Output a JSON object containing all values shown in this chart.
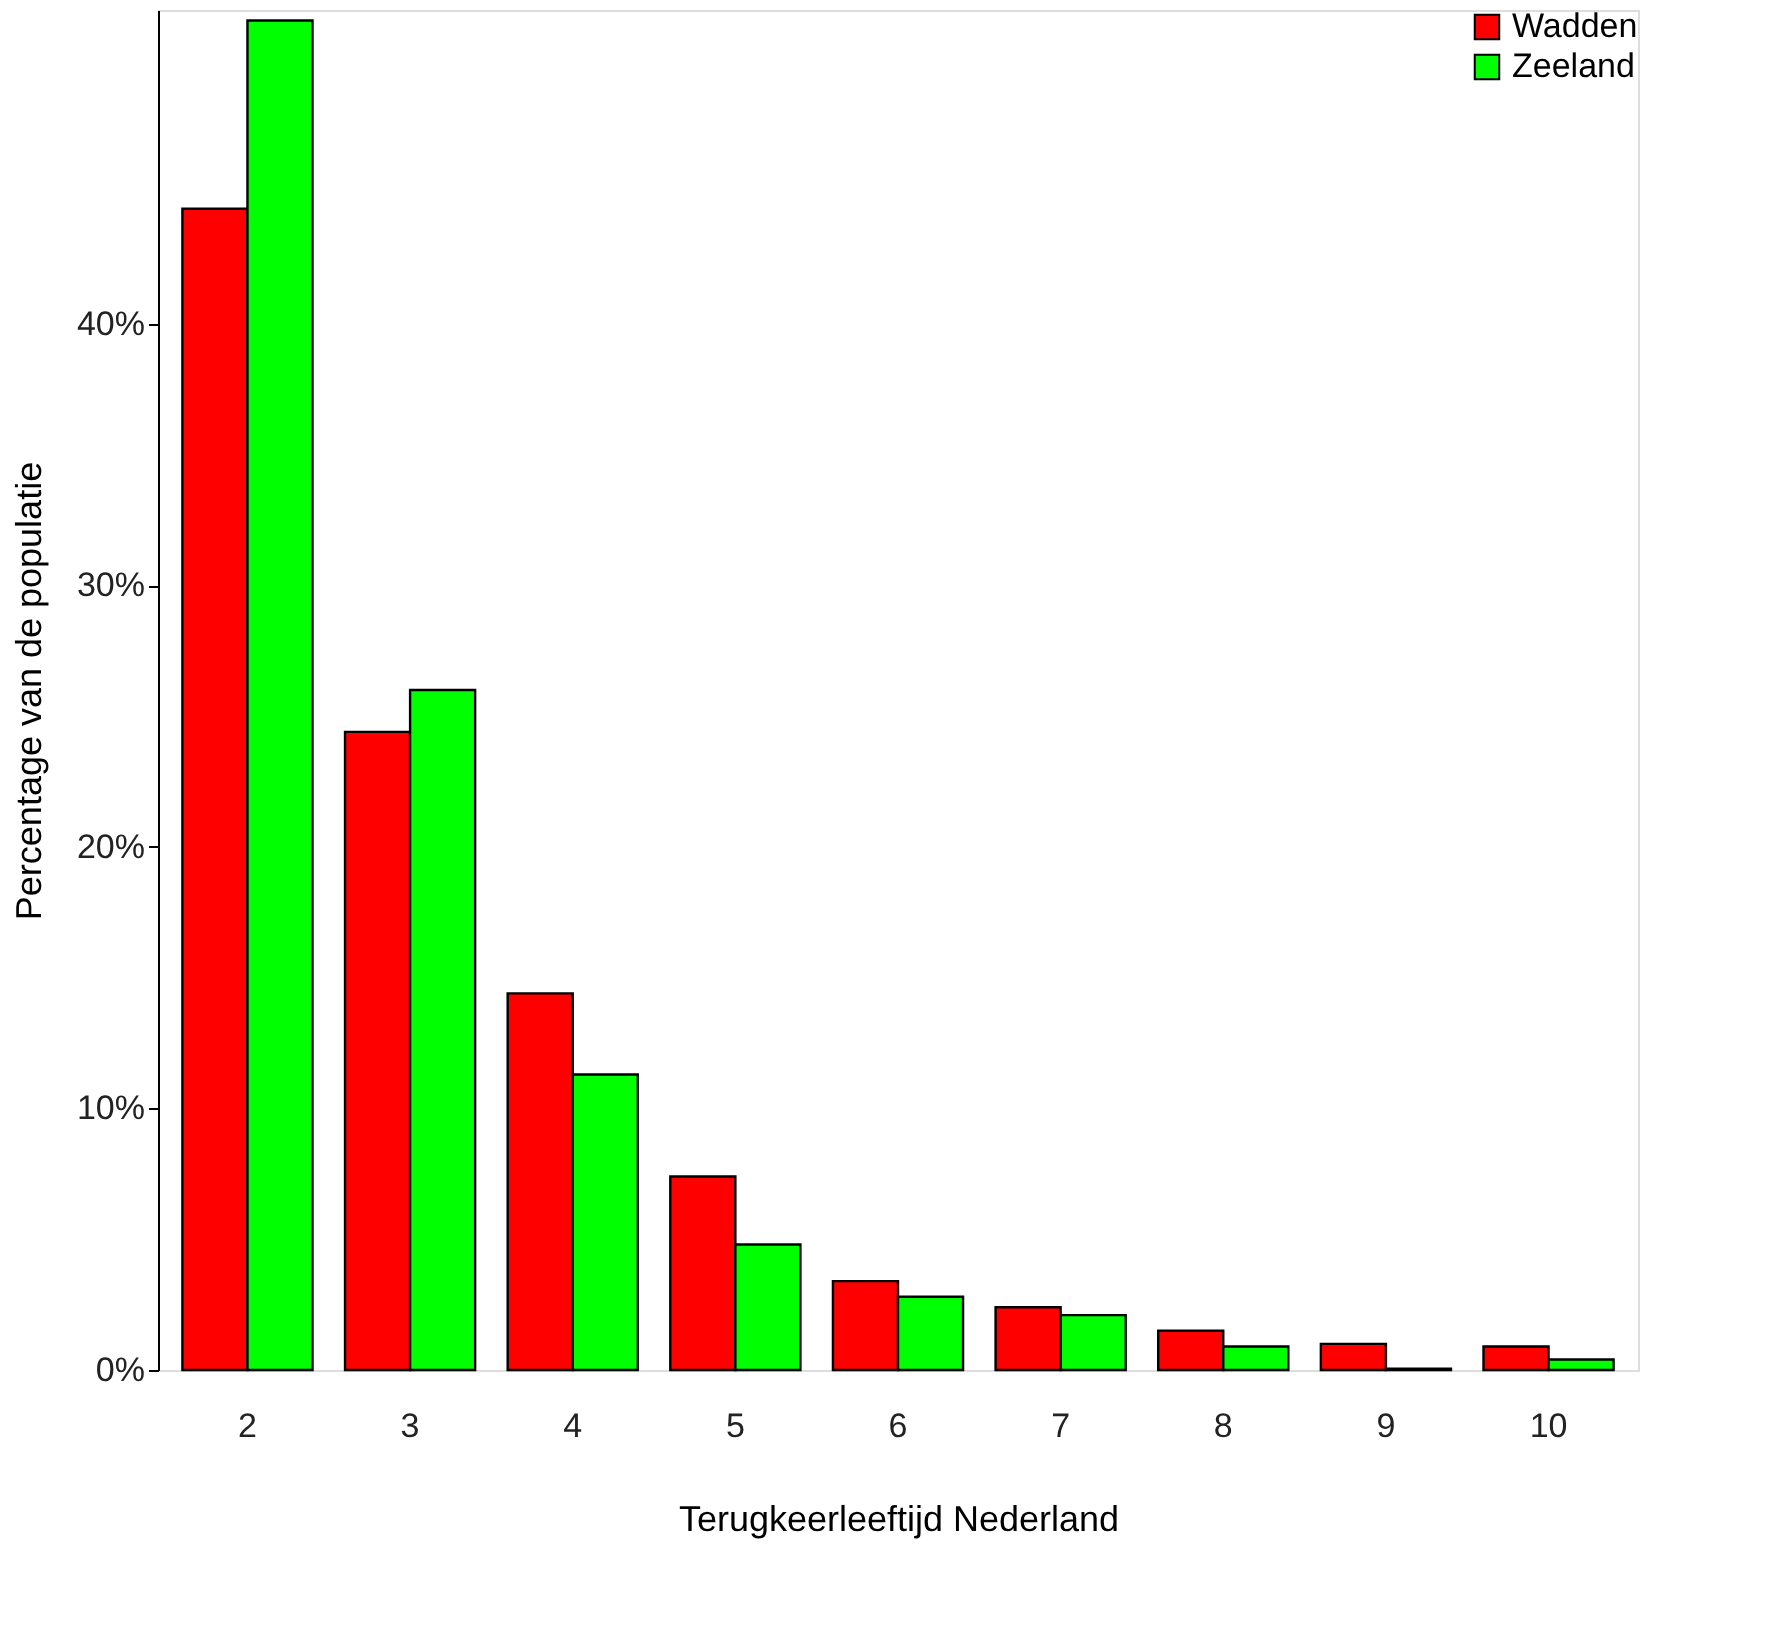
{
  "chart_data": {
    "type": "bar",
    "xlabel": "Terugkeerleeftijd Nederland",
    "ylabel": "Percentage van de populatie",
    "categories": [
      "2",
      "3",
      "4",
      "5",
      "6",
      "7",
      "8",
      "9",
      "10"
    ],
    "series": [
      {
        "name": "Wadden",
        "color": "#ff0000",
        "values": [
          44.4,
          24.4,
          14.4,
          7.4,
          3.4,
          2.4,
          1.5,
          1.0,
          0.9
        ]
      },
      {
        "name": "Zeeland",
        "color": "#00ff00",
        "values": [
          51.6,
          26.0,
          11.3,
          4.8,
          2.8,
          2.1,
          0.9,
          0.05,
          0.4
        ]
      }
    ],
    "ylim": [
      0,
      52
    ],
    "yticks": [
      {
        "value": 0,
        "label": "0%"
      },
      {
        "value": 10,
        "label": "10%"
      },
      {
        "value": 20,
        "label": "20%"
      },
      {
        "value": 30,
        "label": "30%"
      },
      {
        "value": 40,
        "label": "40%"
      }
    ],
    "legend": "top right",
    "grid": false
  }
}
